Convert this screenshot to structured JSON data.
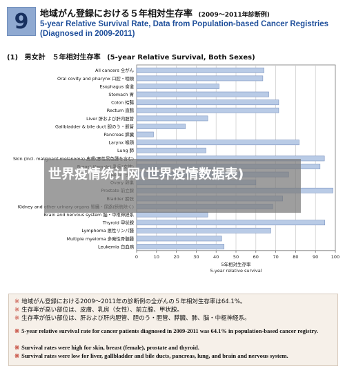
{
  "header": {
    "badge": "9",
    "title_jp": "地域がん登録における５年相対生存率",
    "title_jp_note": "(2009〜2011年診断例)",
    "title_en_line1": "5-year Relative Survival Rate, Data from Population-based Cancer Registries",
    "title_en_line2": "(Diagnosed in 2009-2011)"
  },
  "section": {
    "num": "(1)",
    "jp": "男女計　５年相対生存率",
    "en": "(5-year Relative Survival, Both Sexes)"
  },
  "chart_data": {
    "type": "bar",
    "orientation": "horizontal",
    "categories": [
      "All cancers 全がん",
      "Oral covity and pharynx 口腔・咽頭",
      "Esophagus 食道",
      "Stomach 胃",
      "Colon 結腸",
      "Rectum 直腸",
      "Liver 肝および肝内胆管",
      "Gallbladder & bile duct 胆のう・胆管",
      "Pancreas 膵臓",
      "Larynx 喉頭",
      "Lung 肺",
      "Skin (incl. malignant melanoma) 皮膚(悪性黒色腫を含む)",
      "Breast (female) 乳房(女性)",
      "Uterus 子宮",
      "Ovary 卵巣",
      "Prostate 前立腺",
      "Bladder 膀胱",
      "Kidney and other urinary organs 腎臓・尿路(膀胱除く)",
      "Brain and nervous system 脳・中枢神経系",
      "Thyroid 甲状腺",
      "Lymphoma 悪性リンパ腫",
      "Multiple myeloma 多発性骨髄腫",
      "Leukemia 白血病"
    ],
    "values": [
      64.1,
      63.5,
      41.5,
      66.5,
      71.5,
      71.5,
      35.8,
      24.5,
      8.5,
      81.8,
      34.9,
      94.5,
      92.3,
      76.5,
      60.0,
      98.8,
      73.5,
      68.5,
      35.8,
      94.7,
      67.5,
      42.8,
      44.0
    ],
    "xticks": [
      "0",
      "10",
      "20",
      "30",
      "40",
      "50",
      "60",
      "70",
      "80",
      "90",
      "100"
    ],
    "xlim": [
      0,
      100
    ],
    "xlabel_jp": "5年相対生存率",
    "xlabel_en": "5-year relative survival",
    "grid": true,
    "colors": {
      "bar": "#b9cbe6",
      "bar_edge": "#7b93bf"
    }
  },
  "overlay": {
    "banner_text": "世界疫情统计网(世界疫情数据表)"
  },
  "notes": {
    "jp1": "地域がん登録における2009〜2011年の診断例の全がんの５年相対生存率は64.1%。",
    "jp2": "生存率が高い部位は、皮膚、乳房（女性）、前立腺、甲状腺。",
    "jp3": "生存率が低い部位は、肝および肝内胆管、胆のう・胆管、膵臓、肺、脳・中枢神経系。",
    "en1": "5-year relative survival rate for cancer patients diagnosed in 2009-2011 was 64.1% in population-based cancer registry.",
    "en2": "Survival rates were high for skin, breast (female), prostate and thyroid.",
    "en3": "Survival rates were low for liver, gallbladder and bile ducts, pancreas, lung, and brain and nervous system.",
    "bullet": "※"
  }
}
